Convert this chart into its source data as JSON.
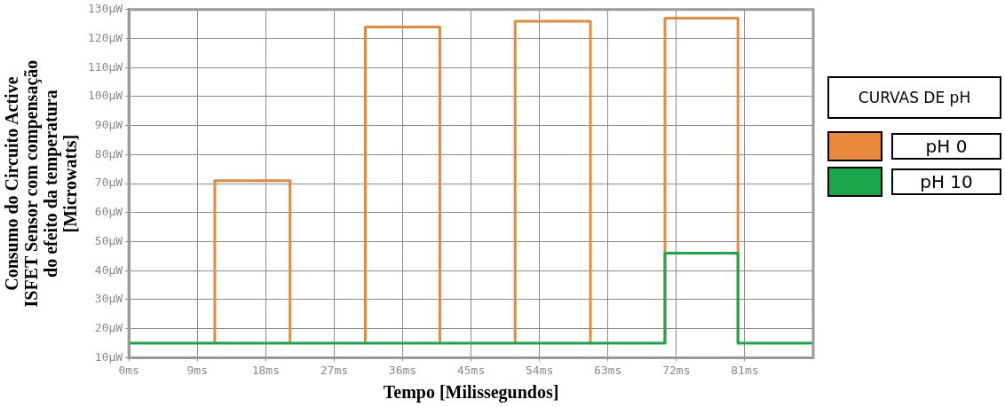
{
  "chart_data": {
    "type": "line",
    "xlabel": "Tempo [Milissegundos]",
    "ylabel": "Consumo do Circuito Active\nISFET Sensor com compensação\ndo efeito da temperatura\n[Microwatts]",
    "legend_title": "CURVAS DE pH",
    "legend": "right",
    "grid": true,
    "marker": "none",
    "line_style": "solid",
    "xlim": [
      0,
      90
    ],
    "xticks": [
      {
        "value": 0,
        "label": "0ms"
      },
      {
        "value": 9,
        "label": "9ms"
      },
      {
        "value": 18,
        "label": "18ms"
      },
      {
        "value": 27,
        "label": "27ms"
      },
      {
        "value": 36,
        "label": "36ms"
      },
      {
        "value": 45,
        "label": "45ms"
      },
      {
        "value": 54,
        "label": "54ms"
      },
      {
        "value": 63,
        "label": "63ms"
      },
      {
        "value": 72,
        "label": "72ms"
      },
      {
        "value": 81,
        "label": "81ms"
      }
    ],
    "ylim": [
      10,
      130
    ],
    "yticks": [
      {
        "value": 10,
        "label": "10µW"
      },
      {
        "value": 20,
        "label": "20µW"
      },
      {
        "value": 30,
        "label": "30µW"
      },
      {
        "value": 40,
        "label": "40µW"
      },
      {
        "value": 50,
        "label": "50µW"
      },
      {
        "value": 60,
        "label": "60µW"
      },
      {
        "value": 70,
        "label": "70µW"
      },
      {
        "value": 80,
        "label": "80µW"
      },
      {
        "value": 90,
        "label": "90µW"
      },
      {
        "value": 100,
        "label": "100µW"
      },
      {
        "value": 110,
        "label": "110µW"
      },
      {
        "value": 120,
        "label": "120µW"
      },
      {
        "value": 130,
        "label": "130µW"
      }
    ],
    "series": [
      {
        "name": "pH 0",
        "color": "#e8883a",
        "x": [
          11.3,
          11.3,
          21.2,
          21.2,
          26,
          31.1,
          31.1,
          40.9,
          40.9,
          46,
          50.8,
          50.8,
          60.7,
          60.7,
          66,
          70.5,
          70.5,
          80.1,
          80.1
        ],
        "values": [
          15,
          71,
          71,
          15,
          null,
          15,
          124,
          124,
          15,
          null,
          15,
          126,
          126,
          15,
          null,
          15,
          127,
          127,
          15
        ]
      },
      {
        "name": "pH 10",
        "color": "#1aa64a",
        "x": [
          0,
          70.5,
          70.5,
          80.1,
          80.1,
          90
        ],
        "values": [
          15,
          15,
          46,
          46,
          15,
          15
        ]
      }
    ]
  }
}
